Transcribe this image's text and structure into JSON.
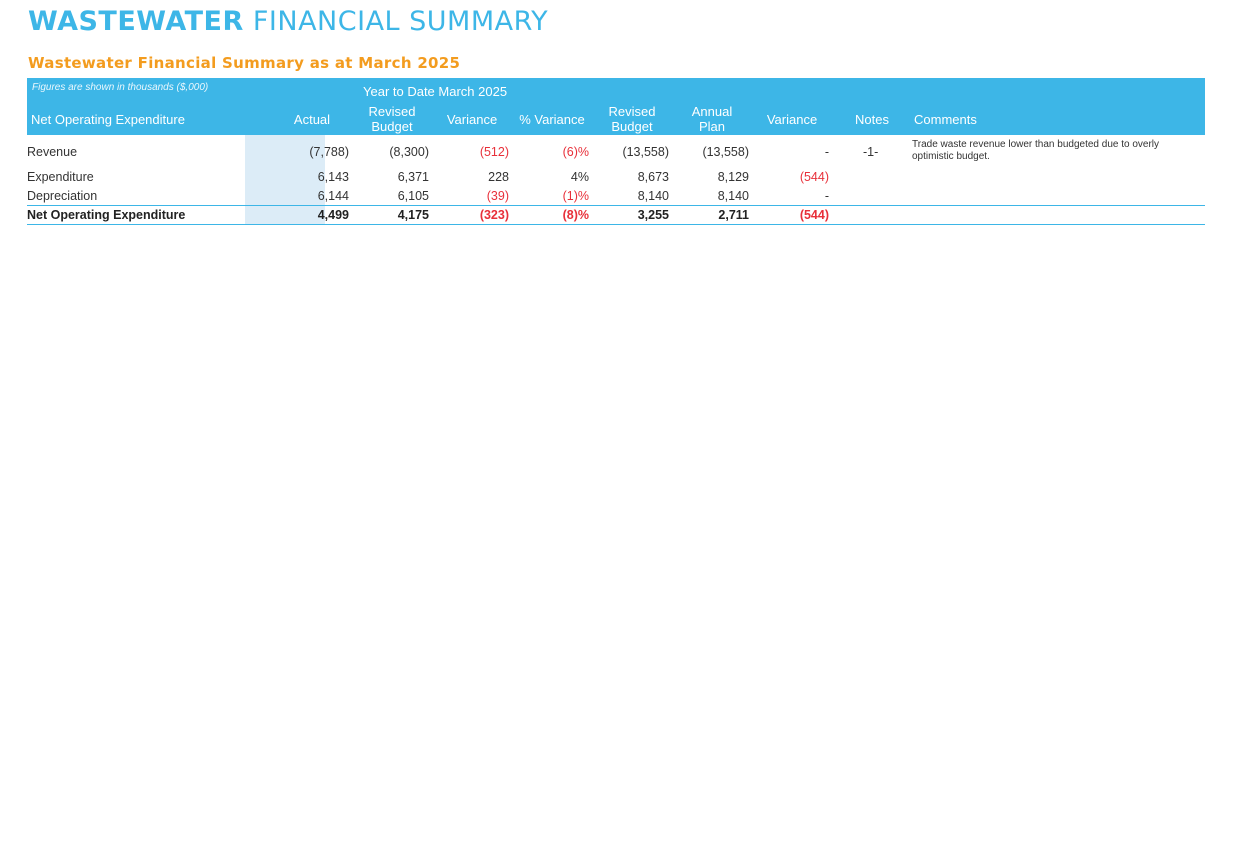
{
  "page": {
    "title_bold": "WASTEWATER",
    "title_light": "FINANCIAL SUMMARY",
    "subtitle": "Wastewater Financial Summary as at March 2025"
  },
  "table": {
    "note": "Figures are shown in thousands ($,000)",
    "group_header": "Year to Date March 2025",
    "headers": {
      "label": "Net Operating Expenditure",
      "actual": "Actual",
      "ytd_budget_1": "Revised",
      "ytd_budget_2": "Budget",
      "ytd_variance": "Variance",
      "pct_variance": "% Variance",
      "rev_budget_1": "Revised",
      "rev_budget_2": "Budget",
      "plan_1": "Annual",
      "plan_2": "Plan",
      "variance": "Variance",
      "notes": "Notes",
      "comments": "Comments"
    },
    "rows": [
      {
        "label": "Revenue",
        "actual": "(7,788)",
        "ytd_budget": "(8,300)",
        "ytd_variance": "(512)",
        "pct_variance": "(6)%",
        "rev_budget": "(13,558)",
        "plan": "(13,558)",
        "variance": "-",
        "notes": "-1-",
        "comments": "Trade waste revenue lower than budgeted due to overly optimistic budget."
      },
      {
        "label": "Expenditure",
        "actual": "6,143",
        "ytd_budget": "6,371",
        "ytd_variance": "228",
        "pct_variance": "4%",
        "rev_budget": "8,673",
        "plan": "8,129",
        "variance": "(544)",
        "notes": "",
        "comments": ""
      },
      {
        "label": "Depreciation",
        "actual": "6,144",
        "ytd_budget": "6,105",
        "ytd_variance": "(39)",
        "pct_variance": "(1)%",
        "rev_budget": "8,140",
        "plan": "8,140",
        "variance": "-",
        "notes": "",
        "comments": ""
      }
    ],
    "total": {
      "label": "Net Operating Expenditure",
      "actual": "4,499",
      "ytd_budget": "4,175",
      "ytd_variance": "(323)",
      "pct_variance": "(8)%",
      "rev_budget": "3,255",
      "plan": "2,711",
      "variance": "(544)"
    }
  },
  "colors": {
    "accent_blue": "#3db6e7",
    "accent_orange": "#f39c1f",
    "negative_red": "#e8303a",
    "actual_column_bg": "#dcecf7"
  }
}
